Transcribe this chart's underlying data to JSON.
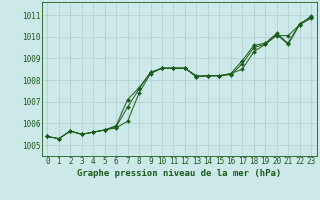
{
  "x": [
    0,
    1,
    2,
    3,
    4,
    5,
    6,
    7,
    8,
    9,
    10,
    11,
    12,
    13,
    14,
    15,
    16,
    17,
    18,
    19,
    20,
    21,
    22,
    23
  ],
  "line1": [
    1005.4,
    1005.3,
    1005.65,
    1005.5,
    1005.6,
    1005.7,
    1005.8,
    1006.1,
    1007.4,
    1008.3,
    1008.55,
    1008.55,
    1008.55,
    1008.2,
    1008.2,
    1008.2,
    1008.3,
    1008.5,
    1009.3,
    1009.65,
    1010.05,
    1010.05,
    1010.55,
    1010.95
  ],
  "line2": [
    1005.4,
    1005.3,
    1005.65,
    1005.5,
    1005.6,
    1005.7,
    1005.85,
    1006.75,
    1007.6,
    1008.35,
    1008.55,
    1008.55,
    1008.55,
    1008.15,
    1008.2,
    1008.2,
    1008.25,
    1008.75,
    1009.5,
    1009.65,
    1010.1,
    1009.65,
    1010.55,
    1010.85
  ],
  "line3": [
    1005.4,
    1005.3,
    1005.65,
    1005.5,
    1005.6,
    1005.7,
    1005.9,
    1007.1,
    1007.65,
    1008.35,
    1008.55,
    1008.55,
    1008.55,
    1008.15,
    1008.2,
    1008.2,
    1008.3,
    1008.9,
    1009.6,
    1009.7,
    1010.15,
    1009.7,
    1010.6,
    1010.9
  ],
  "bg_color": "#cce8e8",
  "grid_color": "#b0cccc",
  "line_color": "#1a5c1a",
  "xlabel": "Graphe pression niveau de la mer (hPa)",
  "ylim_min": 1004.5,
  "ylim_max": 1011.6,
  "yticks": [
    1005,
    1006,
    1007,
    1008,
    1009,
    1010,
    1011
  ],
  "xticks": [
    0,
    1,
    2,
    3,
    4,
    5,
    6,
    7,
    8,
    9,
    10,
    11,
    12,
    13,
    14,
    15,
    16,
    17,
    18,
    19,
    20,
    21,
    22,
    23
  ],
  "marker_size": 2.0,
  "line_width": 0.7,
  "tick_fontsize": 5.5,
  "xlabel_fontsize": 6.5
}
